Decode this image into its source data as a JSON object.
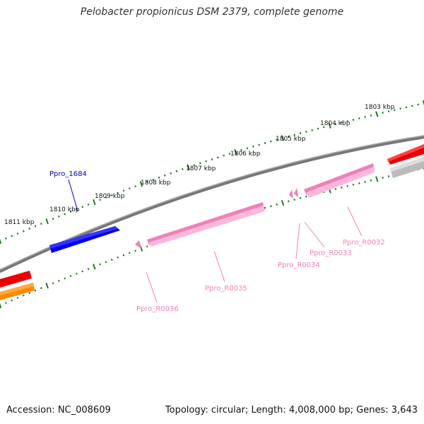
{
  "title": "Pelobacter propionicus DSM 2379, complete genome",
  "footer": {
    "accession": "Accession: NC_008609",
    "topology": "Topology: circular; Length: 4,008,000 bp; Genes: 3,643"
  },
  "kbp_labels": [
    "1811 kbp",
    "1810 kbp",
    "1809 kbp",
    "1808 kbp",
    "1807 kbp",
    "1806 kbp",
    "1805 kbp",
    "1804 kbp",
    "1803 kbp"
  ],
  "gene_labels": [
    {
      "name": "Ppro_1684",
      "color": "#0000cc"
    },
    {
      "name": "Ppro_R0036",
      "color": "#f080b8"
    },
    {
      "name": "Ppro_R0035",
      "color": "#f080b8"
    },
    {
      "name": "Ppro_R0034",
      "color": "#f080b8"
    },
    {
      "name": "Ppro_R0033",
      "color": "#f080b8"
    },
    {
      "name": "Ppro_R0032",
      "color": "#f080b8"
    }
  ],
  "colors": {
    "backbone": "#777777",
    "tick": "#1e7a1e",
    "cds_forward": "#0000ee",
    "rna": "#f4a0d0",
    "red_feature": "#ee0000",
    "orange_feature": "#ff8800",
    "gray_feature": "#bbbbbb"
  }
}
